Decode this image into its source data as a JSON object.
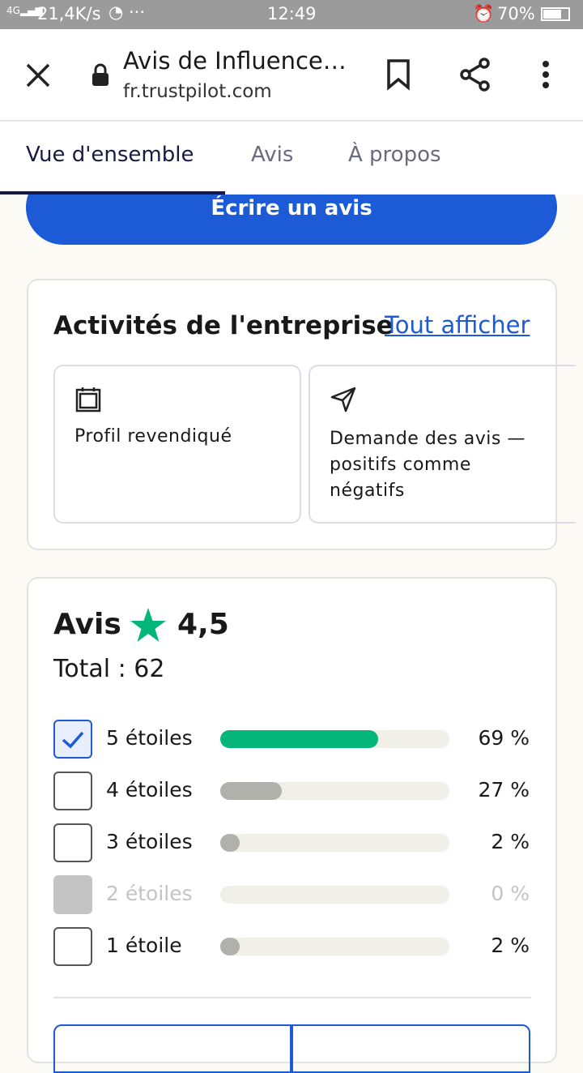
{
  "status_bar": {
    "network": "21,4K/s",
    "time": "12:49",
    "battery": "70%"
  },
  "browser_bar": {
    "title": "Avis de Influence…",
    "url": "fr.trustpilot.com"
  },
  "tabs": [
    "Vue d'ensemble",
    "Avis",
    "À propos"
  ],
  "write_button": "Écrire un avis",
  "activities": {
    "title": "Activités de l'entreprise",
    "link": "Tout afficher",
    "cards": [
      "Profil revendiqué",
      "Demande des avis — positifs comme négatifs"
    ]
  },
  "reviews": {
    "title": "Avis",
    "score": "4,5",
    "total": "Total : 62",
    "rows": [
      {
        "label": "5 étoiles",
        "percent": 69,
        "percent_label": "69 %",
        "checked": true,
        "disabled": false,
        "color": "#04b67a"
      },
      {
        "label": "4 étoiles",
        "percent": 27,
        "percent_label": "27 %",
        "checked": false,
        "disabled": false,
        "color": "#b1b1ac"
      },
      {
        "label": "3 étoiles",
        "percent": 2,
        "percent_label": "2 %",
        "checked": false,
        "disabled": false,
        "color": "#b1b1ac"
      },
      {
        "label": "2 étoiles",
        "percent": 0,
        "percent_label": "0 %",
        "checked": false,
        "disabled": true,
        "color": "#b1b1ac"
      },
      {
        "label": "1 étoile",
        "percent": 2,
        "percent_label": "2 %",
        "checked": false,
        "disabled": false,
        "color": "#b1b1ac"
      }
    ]
  }
}
